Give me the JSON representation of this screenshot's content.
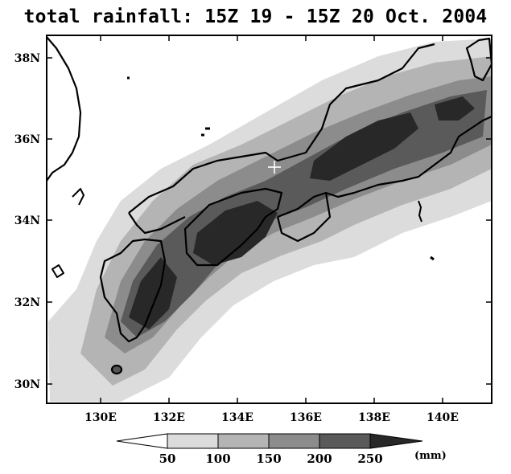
{
  "title": "total rainfall: 15Z 19 - 15Z 20 Oct. 2004",
  "map": {
    "lon_ticks": [
      "130E",
      "132E",
      "134E",
      "136E",
      "138E",
      "140E"
    ],
    "lat_ticks": [
      "38N",
      "36N",
      "34N",
      "32N",
      "30N"
    ],
    "extent": {
      "lon_min": 128.6,
      "lon_max": 141.5,
      "lat_min": 29.5,
      "lat_max": 38.5
    },
    "marker": {
      "symbol": "+",
      "color": "#ffffff"
    }
  },
  "colorbar": {
    "levels": [
      "50",
      "100",
      "150",
      "200",
      "250"
    ],
    "unit": "(mm)",
    "colors": [
      "#ffffff",
      "#dcdcdc",
      "#b4b4b4",
      "#8c8c8c",
      "#5a5a5a",
      "#282828"
    ]
  }
}
